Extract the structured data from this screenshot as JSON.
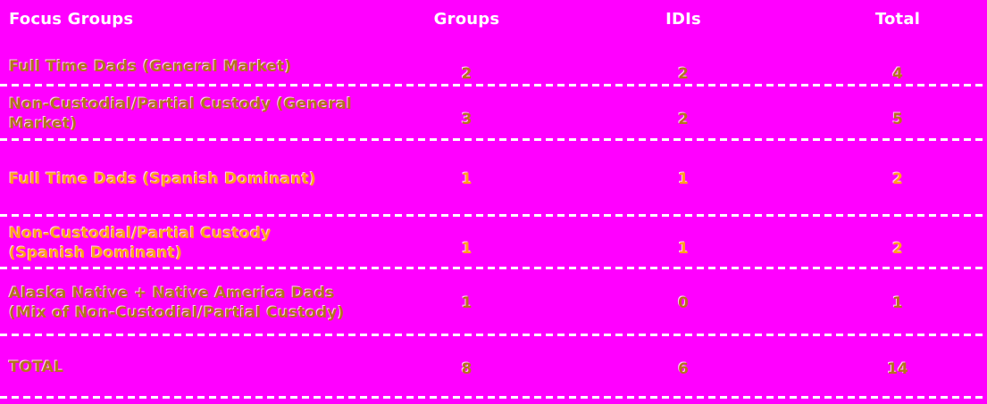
{
  "colors": {
    "background": "#FF00FF",
    "header_text": "#FFFFFF",
    "dark_row_text": "#B5731E",
    "bright_row_text": "#FFA11C",
    "separator_dashes": "#FFFFFF"
  },
  "table": {
    "columns": [
      "Focus Groups",
      "Groups",
      "IDIs",
      "Total"
    ],
    "rows": [
      {
        "label": "Full Time Dads (General Market)",
        "groups": 2,
        "idis": 2,
        "total": 4,
        "highlight": false
      },
      {
        "label": "Non-Custodial/Partial Custody (General\nMarket)",
        "groups": 3,
        "idis": 2,
        "total": 5,
        "highlight": false
      },
      {
        "label": "Full Time Dads (Spanish Dominant)",
        "groups": 1,
        "idis": 1,
        "total": 2,
        "highlight": true
      },
      {
        "label": "Non-Custodial/Partial Custody\n(Spanish Dominant)",
        "groups": 1,
        "idis": 1,
        "total": 2,
        "highlight": true
      },
      {
        "label": "Alaska Native + Native America Dads\n(Mix of Non-Custodial/Partial Custody)",
        "groups": 1,
        "idis": 0,
        "total": 1,
        "highlight": false
      }
    ],
    "total_row": {
      "label": "TOTAL",
      "groups": 8,
      "idis": 6,
      "total": 14
    }
  },
  "chart_data": {
    "type": "table",
    "columns": [
      "Focus Groups",
      "Groups",
      "IDIs",
      "Total"
    ],
    "rows": [
      [
        "Full Time Dads (General Market)",
        2,
        2,
        4
      ],
      [
        "Non-Custodial/Partial Custody (General Market)",
        3,
        2,
        5
      ],
      [
        "Full Time Dads (Spanish Dominant)",
        1,
        1,
        2
      ],
      [
        "Non-Custodial/Partial Custody (Spanish Dominant)",
        1,
        1,
        2
      ],
      [
        "Alaska Native + Native America Dads (Mix of Non-Custodial/Partial Custody)",
        1,
        0,
        1
      ],
      [
        "TOTAL",
        8,
        6,
        14
      ]
    ]
  }
}
